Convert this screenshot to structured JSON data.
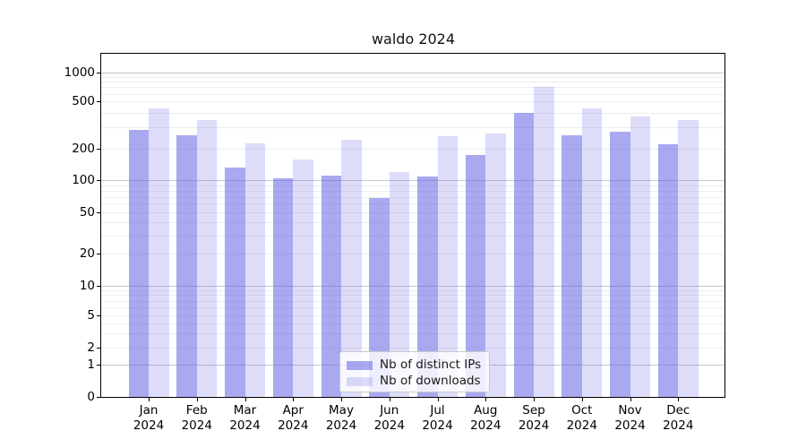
{
  "title": "waldo 2024",
  "chart_data": {
    "type": "bar",
    "title": "waldo 2024",
    "categories": [
      "Jan 2024",
      "Feb 2024",
      "Mar 2024",
      "Apr 2024",
      "May 2024",
      "Jun 2024",
      "Jul 2024",
      "Aug 2024",
      "Sep 2024",
      "Oct 2024",
      "Nov 2024",
      "Dec 2024"
    ],
    "series": [
      {
        "name": "Nb of distinct IPs",
        "color": "#a8a8f0",
        "fill": "rgba(98,98,230,0.55)",
        "values": [
          287,
          258,
          131,
          104,
          110,
          68,
          108,
          174,
          400,
          260,
          275,
          215
        ]
      },
      {
        "name": "Nb of downloads",
        "color": "#dcdcf8",
        "fill": "rgba(98,98,230,0.22)",
        "values": [
          437,
          350,
          222,
          157,
          235,
          120,
          255,
          265,
          700,
          435,
          372,
          348
        ]
      }
    ],
    "yscale": "symlog",
    "ylim": [
      0,
      1200
    ],
    "yticks": [
      0,
      1,
      2,
      5,
      10,
      20,
      50,
      100,
      200,
      500,
      1000
    ],
    "grid": true,
    "legend_position": "lower center",
    "xlabel": "",
    "ylabel": ""
  },
  "colors": {
    "grid_major": "#c6c6c6",
    "grid_minor": "#ededed",
    "axis": "#000000",
    "text": "#1a1a1a",
    "legend_border": "#c9c9c9",
    "legend_bg": "rgba(255,255,255,0.8)"
  }
}
